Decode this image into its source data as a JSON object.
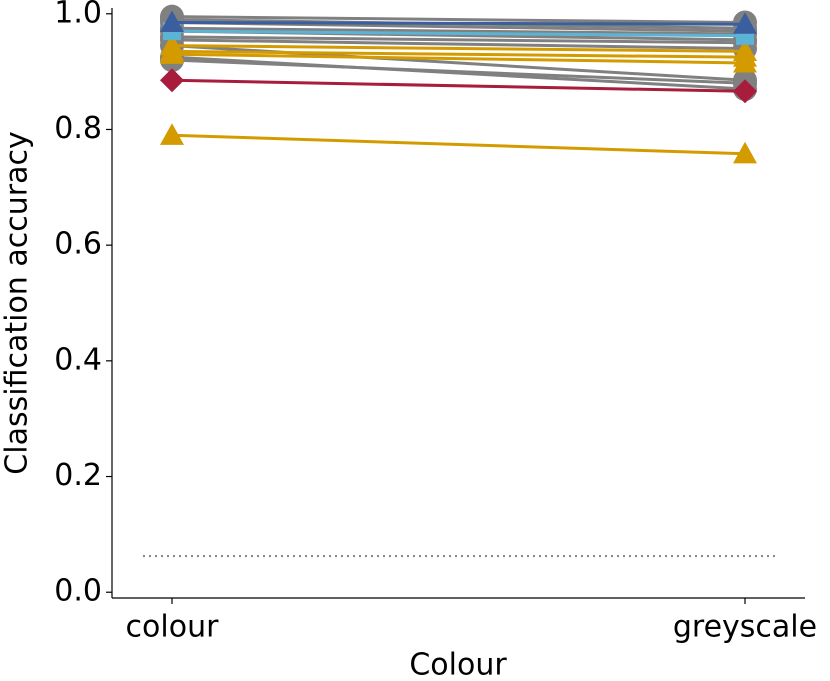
{
  "chart_data": {
    "type": "line",
    "x_label": "Colour",
    "y_label": "Classification accuracy",
    "categories": [
      "colour",
      "greyscale"
    ],
    "ylim": [
      -0.01,
      1.01
    ],
    "yticks": [
      {
        "value": 0,
        "label": "0.0"
      },
      0.2,
      0.4,
      0.6,
      0.8,
      {
        "value": 1,
        "label": "1.0"
      }
    ],
    "reference_line": 0.0625,
    "reference_color": "#888888",
    "series": [
      {
        "color": "#808080",
        "marker": "circle",
        "values": [
          0.995,
          0.985
        ]
      },
      {
        "color": "#808080",
        "marker": "circle",
        "values": [
          0.99,
          0.975
        ]
      },
      {
        "color": "#808080",
        "marker": "circle",
        "values": [
          0.985,
          0.97
        ]
      },
      {
        "color": "#808080",
        "marker": "circle",
        "values": [
          0.975,
          0.965
        ]
      },
      {
        "color": "#808080",
        "marker": "circle",
        "values": [
          0.97,
          0.955
        ]
      },
      {
        "color": "#808080",
        "marker": "circle",
        "values": [
          0.96,
          0.95
        ]
      },
      {
        "color": "#808080",
        "marker": "circle",
        "values": [
          0.955,
          0.94
        ]
      },
      {
        "color": "#808080",
        "marker": "circle",
        "values": [
          0.945,
          0.885
        ]
      },
      {
        "color": "#808080",
        "marker": "circle",
        "values": [
          0.925,
          0.87
        ]
      },
      {
        "color": "#808080",
        "marker": "circle",
        "values": [
          0.92,
          0.88
        ]
      },
      {
        "color": "#d49b00",
        "marker": "triangle",
        "values": [
          0.79,
          0.758
        ]
      },
      {
        "color": "#d49b00",
        "marker": "triangle",
        "values": [
          0.935,
          0.925
        ]
      },
      {
        "color": "#d49b00",
        "marker": "triangle",
        "values": [
          0.93,
          0.915
        ]
      },
      {
        "color": "#d49b00",
        "marker": "triangle",
        "values": [
          0.945,
          0.935
        ]
      },
      {
        "color": "#5bb4d6",
        "marker": "square",
        "values": [
          0.97,
          0.962
        ]
      },
      {
        "color": "#3a5e9e",
        "marker": "triangle",
        "values": [
          0.985,
          0.982
        ]
      },
      {
        "color": "#a81c3c",
        "marker": "diamond",
        "values": [
          0.885,
          0.866
        ]
      }
    ]
  }
}
